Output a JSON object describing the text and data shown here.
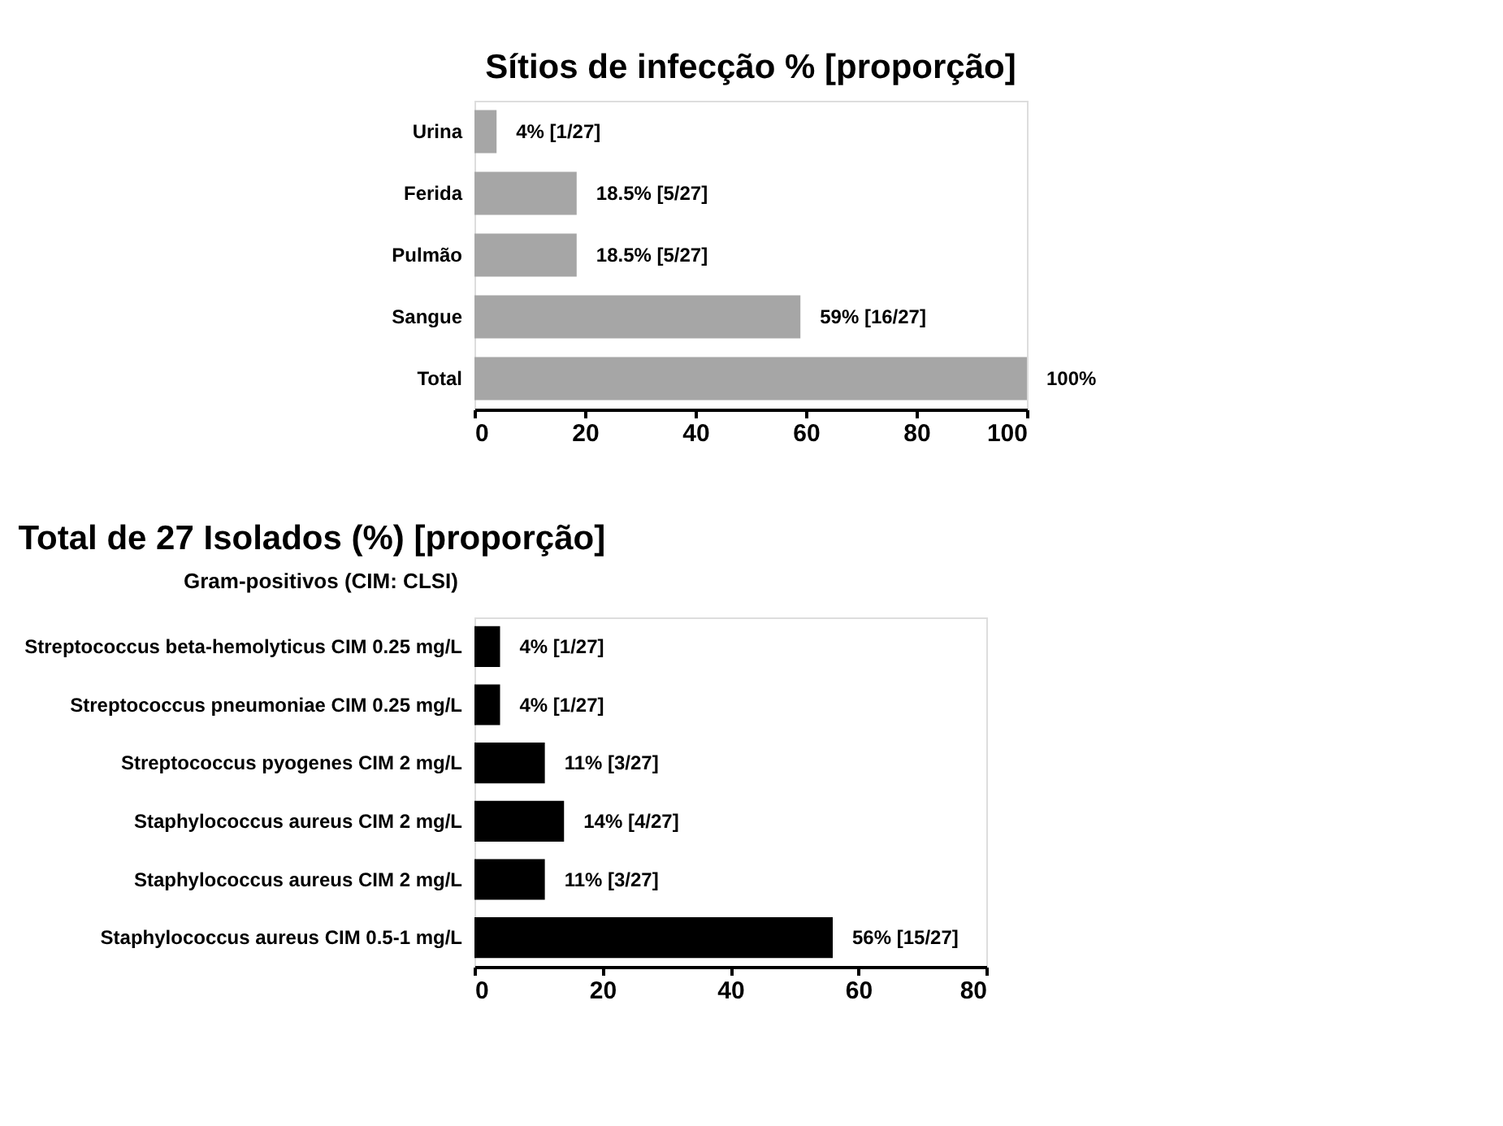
{
  "chart_data": [
    {
      "type": "bar",
      "orientation": "horizontal",
      "title": "Sítios de infecção % [proporção]",
      "categories": [
        "Urina",
        "Ferida",
        "Pulmão",
        "Sangue",
        "Total"
      ],
      "values": [
        4,
        18.5,
        18.5,
        59,
        100
      ],
      "value_labels": [
        "4% [1/27]",
        "18.5% [5/27]",
        "18.5% [5/27]",
        "59% [16/27]",
        "100%"
      ],
      "color": "#a6a6a6",
      "xlim": [
        0,
        100
      ],
      "xticks": [
        0,
        20,
        40,
        60,
        80,
        100
      ],
      "grid": false
    },
    {
      "type": "bar",
      "orientation": "horizontal",
      "title": "Total de 27 Isolados (%) [proporção]",
      "annotations": [
        "Gram-positivos (CIM: CLSI)"
      ],
      "categories": [
        "Streptococcus beta-hemolyticus  CIM 0.25 mg/L",
        "Streptococcus pneumoniae  CIM 0.25 mg/L",
        "Streptococcus pyogenes  CIM 2 mg/L",
        "Staphylococcus aureus  CIM 2 mg/L",
        "Staphylococcus aureus  CIM 2 mg/L",
        "Staphylococcus aureus  CIM 0.5-1 mg/L"
      ],
      "values": [
        4,
        4,
        11,
        14,
        11,
        56
      ],
      "value_labels": [
        "4% [1/27]",
        "4% [1/27]",
        "11% [3/27]",
        "14% [4/27]",
        "11% [3/27]",
        "56% [15/27]"
      ],
      "color": "#000000",
      "xlim": [
        0,
        80
      ],
      "xticks": [
        0,
        20,
        40,
        60,
        80
      ],
      "grid": false
    }
  ]
}
